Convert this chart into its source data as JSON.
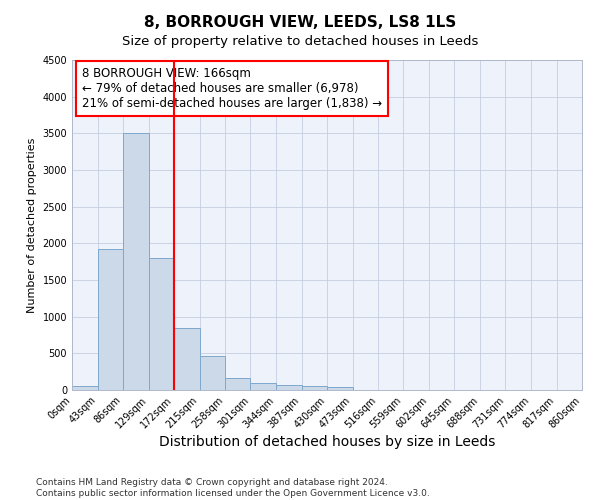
{
  "title": "8, BORROUGH VIEW, LEEDS, LS8 1LS",
  "subtitle": "Size of property relative to detached houses in Leeds",
  "xlabel": "Distribution of detached houses by size in Leeds",
  "ylabel": "Number of detached properties",
  "bar_color": "#ccd9e8",
  "bar_edge_color": "#7fa8cc",
  "vline_color": "red",
  "vline_x": 172,
  "bin_width": 43,
  "bin_starts": [
    0,
    43,
    86,
    129,
    172,
    215,
    258,
    301,
    344,
    387,
    430,
    473,
    516,
    559,
    602,
    645,
    688,
    731,
    774,
    817
  ],
  "bar_heights": [
    50,
    1920,
    3500,
    1800,
    850,
    460,
    160,
    100,
    70,
    55,
    40,
    0,
    0,
    0,
    0,
    0,
    0,
    0,
    0,
    0
  ],
  "annotation_line1": "8 BORROUGH VIEW: 166sqm",
  "annotation_line2": "← 79% of detached houses are smaller (6,978)",
  "annotation_line3": "21% of semi-detached houses are larger (1,838) →",
  "annotation_box_color": "white",
  "annotation_border_color": "red",
  "ylim": [
    0,
    4500
  ],
  "xlim": [
    0,
    860
  ],
  "tick_positions": [
    0,
    43,
    86,
    129,
    172,
    215,
    258,
    301,
    344,
    387,
    430,
    473,
    516,
    559,
    602,
    645,
    688,
    731,
    774,
    817,
    860
  ],
  "tick_labels": [
    "0sqm",
    "43sqm",
    "86sqm",
    "129sqm",
    "172sqm",
    "215sqm",
    "258sqm",
    "301sqm",
    "344sqm",
    "387sqm",
    "430sqm",
    "473sqm",
    "516sqm",
    "559sqm",
    "602sqm",
    "645sqm",
    "688sqm",
    "731sqm",
    "774sqm",
    "817sqm",
    "860sqm"
  ],
  "footer_line1": "Contains HM Land Registry data © Crown copyright and database right 2024.",
  "footer_line2": "Contains public sector information licensed under the Open Government Licence v3.0.",
  "bg_color": "#eef2fb",
  "grid_color": "#c5cee0",
  "title_fontsize": 11,
  "subtitle_fontsize": 9.5,
  "xlabel_fontsize": 10,
  "ylabel_fontsize": 8,
  "tick_fontsize": 7,
  "annotation_fontsize": 8.5,
  "footer_fontsize": 6.5
}
